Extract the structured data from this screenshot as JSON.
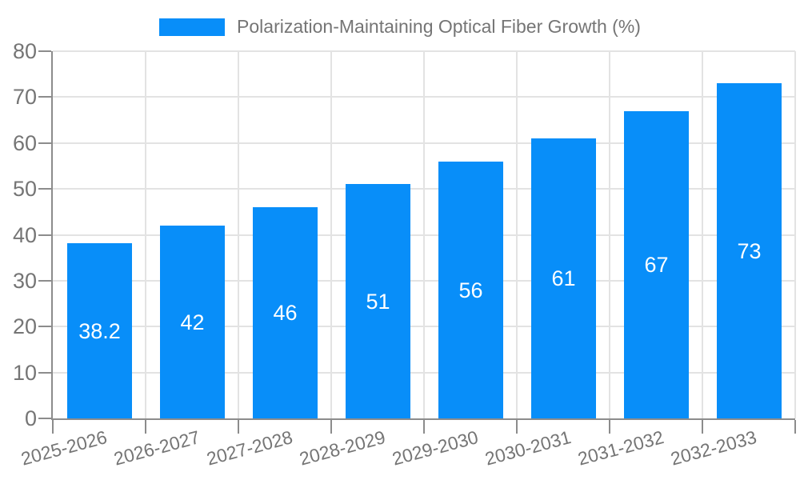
{
  "legend": {
    "label": "Polarization-Maintaining Optical Fiber Growth (%)"
  },
  "colors": {
    "bar": "#088ef9",
    "grid": "#e3e3e3",
    "axis": "#8c8c8c",
    "tick_text": "#757575",
    "bar_label_text": "#ffffff",
    "background": "#ffffff"
  },
  "chart_data": {
    "type": "bar",
    "title": "Polarization-Maintaining Optical Fiber Growth (%)",
    "categories": [
      "2025-2026",
      "2026-2027",
      "2027-2028",
      "2028-2029",
      "2029-2030",
      "2030-2031",
      "2031-2032",
      "2032-2033"
    ],
    "values": [
      38.2,
      42,
      46,
      51,
      56,
      61,
      67,
      73
    ],
    "y_ticks": [
      0,
      10,
      20,
      30,
      40,
      50,
      60,
      70,
      80
    ],
    "ylim": [
      0,
      80
    ],
    "xlabel": "",
    "ylabel": "",
    "grid": true,
    "legend_position": "top-center",
    "value_labels": "inside-center",
    "x_label_rotation_deg": -15
  }
}
